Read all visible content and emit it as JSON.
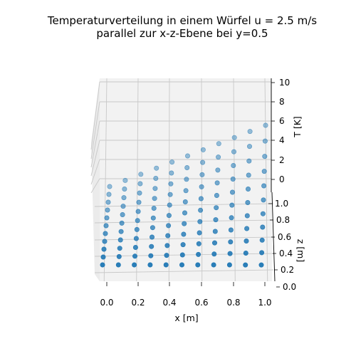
{
  "chart_data": {
    "type": "scatter3d",
    "title_line1": "Temperaturverteilung in einem Würfel u = 2.5 m/s",
    "title_line2": "parallel zur x-z-Ebene bei y=0.5",
    "xlabel": "x [m]",
    "ylabel": "T [K]",
    "zlabel": "z [m]",
    "x_ticks": [
      "0.0",
      "0.2",
      "0.4",
      "0.6",
      "0.8",
      "1.0"
    ],
    "z_ticks": [
      "0.0",
      "0.2",
      "0.4",
      "0.6",
      "0.8",
      "1.0"
    ],
    "t_ticks": [
      "0",
      "2",
      "4",
      "6",
      "8",
      "10"
    ],
    "xlim": [
      0,
      1
    ],
    "zlim": [
      0,
      1
    ],
    "tlim": [
      -1,
      10
    ],
    "grid": true,
    "marker_color": "#1f77b4",
    "x": [
      0.0,
      0.1,
      0.2,
      0.3,
      0.4,
      0.5,
      0.6,
      0.7,
      0.8,
      0.9,
      1.0
    ],
    "z": [
      0.0,
      0.1,
      0.2,
      0.3,
      0.4,
      0.5,
      0.6,
      0.7,
      0.8,
      0.9,
      1.0
    ],
    "T_top": [
      0.0,
      1.0,
      2.0,
      3.0,
      4.0,
      5.0,
      6.0,
      7.0,
      8.0,
      9.0,
      10.0
    ]
  },
  "colors": {
    "pane_back": "#f2f2f2",
    "pane_side": "#ebebeb",
    "pane_floor": "#f4f4f4"
  }
}
